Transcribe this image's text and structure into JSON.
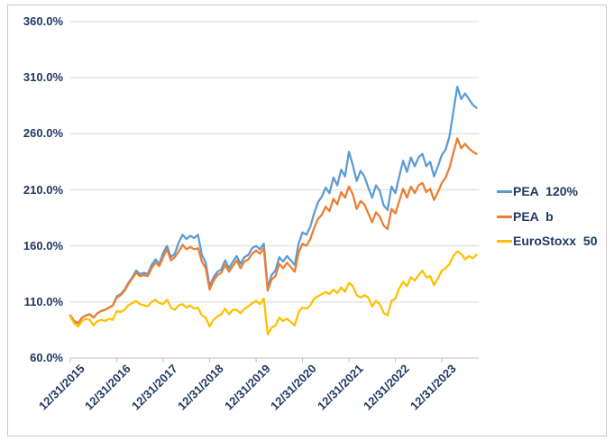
{
  "chart": {
    "background": "#ffffff",
    "frame_border_color": "#c9c9c9",
    "text_color": "#1f3864",
    "gridline_color": "#d9d9d9",
    "axis_line_color": "#bfbfbf"
  },
  "chart_data": {
    "type": "line",
    "title": "",
    "xlabel": "",
    "ylabel": "",
    "grid": true,
    "legend_position": "right",
    "ylim": [
      60,
      360
    ],
    "y_tick_labels": [
      "360.0%",
      "310.0%",
      "260.0%",
      "210.0%",
      "160.0%",
      "110.0%",
      "60.0%"
    ],
    "x_tick_labels": [
      "12/31/2015",
      "12/31/2016",
      "12/31/2017",
      "12/31/2018",
      "12/31/2019",
      "12/31/2020",
      "12/31/2021",
      "12/31/2022",
      "12/31/2023"
    ],
    "x_unit": "months since 12/31/2015, series extend to ~Sep 2024",
    "points_per_year": 12,
    "series": [
      {
        "name": "PEA 120%",
        "color": "#5B9BD5",
        "values": [
          98,
          93,
          91,
          96,
          98,
          99,
          96,
          100,
          102,
          103,
          105,
          107,
          115,
          117,
          121,
          127,
          132,
          138,
          135,
          136,
          135,
          143,
          148,
          144,
          154,
          160,
          150,
          153,
          163,
          170,
          166,
          169,
          167,
          170,
          152,
          145,
          124,
          132,
          137,
          139,
          147,
          140,
          146,
          151,
          144,
          150,
          152,
          158,
          160,
          157,
          162,
          123,
          134,
          138,
          150,
          146,
          151,
          147,
          143,
          162,
          172,
          170,
          177,
          189,
          199,
          204,
          212,
          207,
          221,
          214,
          228,
          222,
          244,
          232,
          218,
          227,
          222,
          212,
          203,
          214,
          209,
          196,
          192,
          213,
          207,
          222,
          236,
          226,
          239,
          231,
          239,
          242,
          231,
          235,
          222,
          231,
          241,
          246,
          258,
          280,
          302,
          291,
          296,
          291,
          286,
          283
        ]
      },
      {
        "name": "PEA b",
        "color": "#ED7D31",
        "values": [
          98,
          93,
          91,
          96,
          98,
          99,
          96,
          100,
          102,
          103,
          105,
          107,
          114,
          116,
          120,
          126,
          131,
          136,
          133,
          134,
          133,
          140,
          145,
          142,
          150,
          157,
          147,
          150,
          155,
          161,
          157,
          159,
          157,
          158,
          146,
          140,
          121,
          129,
          134,
          136,
          143,
          137,
          142,
          147,
          140,
          146,
          148,
          153,
          156,
          153,
          158,
          120,
          130,
          133,
          144,
          140,
          145,
          141,
          137,
          154,
          162,
          160,
          166,
          176,
          184,
          188,
          195,
          191,
          202,
          197,
          208,
          203,
          213,
          206,
          193,
          200,
          197,
          189,
          181,
          190,
          186,
          178,
          175,
          193,
          189,
          200,
          211,
          203,
          213,
          207,
          214,
          216,
          208,
          211,
          201,
          208,
          216,
          221,
          230,
          243,
          256,
          247,
          251,
          247,
          244,
          242
        ]
      },
      {
        "name": "EuroStoxx 50",
        "color": "#FFC000",
        "values": [
          97,
          91,
          88,
          93,
          95,
          94,
          89,
          93,
          94,
          93,
          95,
          94,
          102,
          101,
          103,
          107,
          109,
          111,
          108,
          107,
          106,
          110,
          112,
          109,
          108,
          112,
          105,
          103,
          107,
          108,
          105,
          107,
          104,
          105,
          98,
          96,
          88,
          94,
          97,
          99,
          104,
          99,
          103,
          103,
          100,
          104,
          106,
          109,
          111,
          108,
          113,
          81,
          87,
          89,
          96,
          93,
          95,
          92,
          89,
          101,
          105,
          104,
          107,
          113,
          115,
          117,
          119,
          117,
          121,
          118,
          123,
          119,
          127,
          124,
          116,
          114,
          116,
          114,
          106,
          111,
          108,
          100,
          98,
          111,
          113,
          122,
          128,
          124,
          132,
          129,
          134,
          138,
          132,
          133,
          125,
          131,
          138,
          140,
          144,
          151,
          155,
          153,
          148,
          151,
          149,
          152
        ]
      }
    ]
  }
}
